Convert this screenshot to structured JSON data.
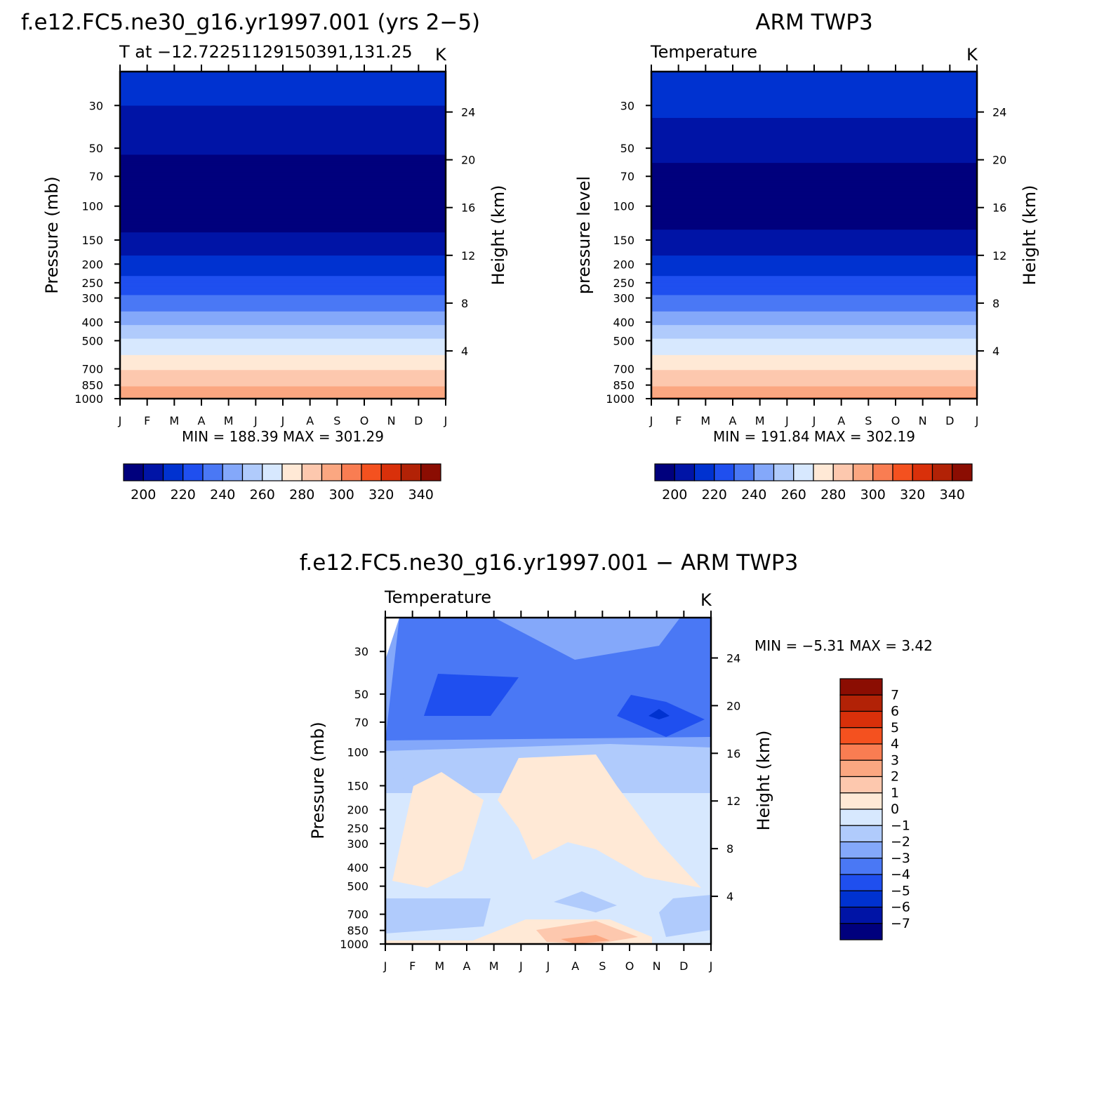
{
  "colors": {
    "abs_levels": [
      "#00007d",
      "#0014a6",
      "#0032d0",
      "#1f4fef",
      "#4a78f5",
      "#84a8fa",
      "#b0cbfc",
      "#d7e8fe",
      "#ffe9d6",
      "#fdc8ae",
      "#fba781",
      "#f97d52",
      "#f4511f",
      "#d9300a",
      "#b22206",
      "#8b0d02"
    ],
    "diff_levels": [
      "#00007d",
      "#0014a6",
      "#0032d0",
      "#1f4fef",
      "#4a78f5",
      "#84a8fa",
      "#b0cbfc",
      "#d7e8fe",
      "#ffe9d6",
      "#fdc8ae",
      "#fba781",
      "#f97d52",
      "#f4511f",
      "#d9300a",
      "#b22206",
      "#8b0d02"
    ]
  },
  "months": [
    "J",
    "F",
    "M",
    "A",
    "M",
    "J",
    "J",
    "A",
    "S",
    "O",
    "N",
    "D",
    "J"
  ],
  "pressure_ticks": [
    "30",
    "50",
    "70",
    "100",
    "150",
    "200",
    "250",
    "300",
    "400",
    "500",
    "700",
    "850",
    "1000"
  ],
  "height_ticks": [
    "24",
    "20",
    "16",
    "12",
    "8",
    "4"
  ],
  "panel_model": {
    "title": "f.e12.FC5.ne30_g16.yr1997.001 (yrs 2−5)",
    "subtitle_left": "T at −12.72251129150391,131.25",
    "subtitle_right": "K",
    "ylabel": "Pressure (mb)",
    "y2label": "Height (km)",
    "minmax": "MIN = 188.39  MAX = 301.29"
  },
  "panel_obs": {
    "title": "ARM TWP3",
    "subtitle_left": "Temperature",
    "subtitle_right": "K",
    "ylabel": "pressure level",
    "y2label": "Height (km)",
    "minmax": "MIN = 191.84  MAX = 302.19"
  },
  "panel_diff": {
    "title": "f.e12.FC5.ne30_g16.yr1997.001 − ARM TWP3",
    "subtitle_left": "Temperature",
    "subtitle_right": "K",
    "ylabel": "Pressure (mb)",
    "y2label": "Height (km)",
    "minmax": "MIN =   −5.31  MAX =     3.42"
  },
  "colorbar_abs": {
    "labels": [
      "200",
      "220",
      "240",
      "260",
      "280",
      "300",
      "320",
      "340"
    ]
  },
  "colorbar_diff": {
    "labels": [
      "7",
      "6",
      "5",
      "4",
      "3",
      "2",
      "1",
      "0",
      "−1",
      "−2",
      "−3",
      "−4",
      "−5",
      "−6",
      "−7"
    ]
  },
  "chart_data": [
    {
      "type": "heatmap",
      "title": "f.e12.FC5.ne30_g16.yr1997.001 (yrs 2−5)",
      "subtitle": "T at −12.72251129150391,131.25",
      "units": "K",
      "xlabel": "",
      "ylabel": "Pressure (mb)",
      "y2label": "Height (km)",
      "x": [
        "J",
        "F",
        "M",
        "A",
        "M",
        "J",
        "J",
        "A",
        "S",
        "O",
        "N",
        "D",
        "J"
      ],
      "yscale": "log",
      "ylim": [
        1000,
        20
      ],
      "contour_levels": [
        190,
        200,
        210,
        220,
        230,
        240,
        250,
        260,
        270,
        280,
        290,
        300,
        310,
        320,
        330,
        340
      ],
      "min": 188.39,
      "max": 301.29,
      "profile": {
        "pressure": [
          20,
          30,
          50,
          70,
          100,
          150,
          200,
          250,
          300,
          400,
          500,
          700,
          850,
          1000
        ],
        "temperature": [
          218,
          210,
          202,
          193,
          192,
          203,
          214,
          224,
          232,
          248,
          262,
          279,
          289,
          300
        ]
      }
    },
    {
      "type": "heatmap",
      "title": "ARM TWP3",
      "subtitle": "Temperature",
      "units": "K",
      "xlabel": "",
      "ylabel": "pressure level",
      "y2label": "Height (km)",
      "x": [
        "J",
        "F",
        "M",
        "A",
        "M",
        "J",
        "J",
        "A",
        "S",
        "O",
        "N",
        "D",
        "J"
      ],
      "yscale": "log",
      "ylim": [
        1000,
        20
      ],
      "contour_levels": [
        190,
        200,
        210,
        220,
        230,
        240,
        250,
        260,
        270,
        280,
        290,
        300,
        310,
        320,
        330,
        340
      ],
      "min": 191.84,
      "max": 302.19,
      "profile": {
        "pressure": [
          20,
          30,
          50,
          70,
          100,
          150,
          200,
          250,
          300,
          400,
          500,
          700,
          850,
          1000
        ],
        "temperature": [
          218,
          212,
          204,
          196,
          193,
          204,
          214,
          224,
          232,
          248,
          262,
          279,
          289,
          301
        ]
      }
    },
    {
      "type": "heatmap",
      "title": "f.e12.FC5.ne30_g16.yr1997.001 − ARM TWP3",
      "subtitle": "Temperature",
      "units": "K",
      "xlabel": "",
      "ylabel": "Pressure (mb)",
      "y2label": "Height (km)",
      "x": [
        "J",
        "F",
        "M",
        "A",
        "M",
        "J",
        "J",
        "A",
        "S",
        "O",
        "N",
        "D",
        "J"
      ],
      "yscale": "log",
      "ylim": [
        1000,
        20
      ],
      "contour_levels": [
        -7,
        -6,
        -5,
        -4,
        -3,
        -2,
        -1,
        0,
        1,
        2,
        3,
        4,
        5,
        6,
        7
      ],
      "min": -5.31,
      "max": 3.42
    }
  ]
}
